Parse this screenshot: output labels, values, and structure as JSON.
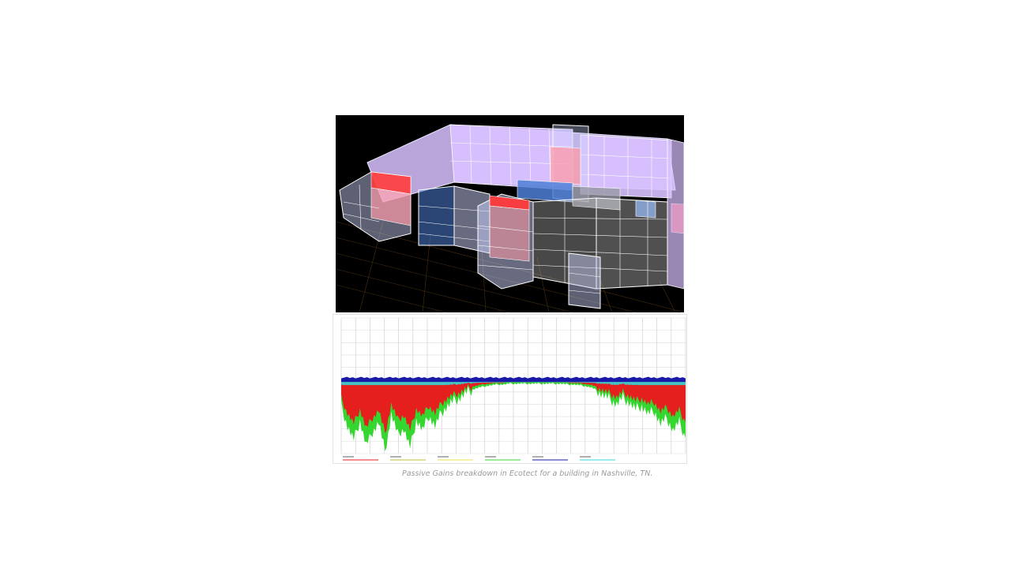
{
  "caption": "Passive Gains breakdown in Ecotect for a building in Nashville, TN.",
  "model_view": {
    "background_color": "#000000",
    "ground_grid_color": "#4a2e10",
    "zone_colors": {
      "cool": "#d9c2ff",
      "hot": "#ff3b3b",
      "cold": "#4f7fd6",
      "neutral": "#cfd6ff",
      "frame": "#e8e8ff"
    }
  },
  "chart_data": {
    "type": "area",
    "title": "",
    "xlabel": "",
    "ylabel": "",
    "grid": true,
    "legend_placement": "bottom",
    "series_colors": {
      "heating_loss": "#e51e1e",
      "green_band": "#35d62f",
      "cyan_band": "#33d4d4",
      "blue_band": "#1a1aa8"
    },
    "baseline_fraction": 0.46,
    "note_values": "values are relative (fraction of plot height below baseline) read from daily-profile envelope",
    "envelope": [
      0.3,
      0.55,
      0.72,
      0.48,
      0.8,
      0.62,
      0.5,
      0.88,
      0.4,
      0.65,
      0.58,
      0.83,
      0.47,
      0.6,
      0.42,
      0.55,
      0.38,
      0.3,
      0.24,
      0.2,
      0.14,
      0.1,
      0.08,
      0.06,
      0.05,
      0.04,
      0.04,
      0.03,
      0.03,
      0.03,
      0.03,
      0.03,
      0.03,
      0.03,
      0.03,
      0.03,
      0.04,
      0.04,
      0.05,
      0.06,
      0.08,
      0.12,
      0.18,
      0.22,
      0.28,
      0.2,
      0.26,
      0.34,
      0.3,
      0.4,
      0.36,
      0.52,
      0.45,
      0.6,
      0.5,
      0.7
    ]
  }
}
